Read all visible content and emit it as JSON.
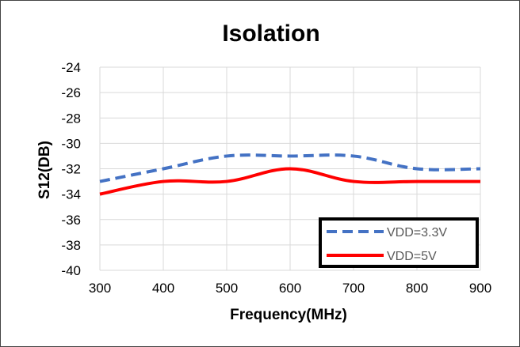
{
  "chart_data": {
    "type": "line",
    "title": "Isolation",
    "xlabel": "Frequency(MHz)",
    "ylabel": "S12(DB)",
    "xlim": [
      300,
      900
    ],
    "ylim": [
      -40,
      -24
    ],
    "x_ticks": [
      300,
      400,
      500,
      600,
      700,
      800,
      900
    ],
    "y_ticks": [
      -24,
      -26,
      -28,
      -30,
      -32,
      -34,
      -36,
      -38,
      -40
    ],
    "grid": true,
    "legend_position": "bottom-right",
    "series": [
      {
        "name": "VDD=3.3V",
        "color": "#4472C4",
        "line_style": "dashed",
        "x": [
          300,
          400,
          500,
          600,
          700,
          800,
          900
        ],
        "y": [
          -33,
          -32,
          -31,
          -31,
          -31,
          -32,
          -32
        ]
      },
      {
        "name": "VDD=5V",
        "color": "#FF0000",
        "line_style": "solid",
        "x": [
          300,
          400,
          500,
          600,
          700,
          800,
          900
        ],
        "y": [
          -34,
          -33,
          -33,
          -32,
          -33,
          -33,
          -33
        ]
      }
    ]
  }
}
